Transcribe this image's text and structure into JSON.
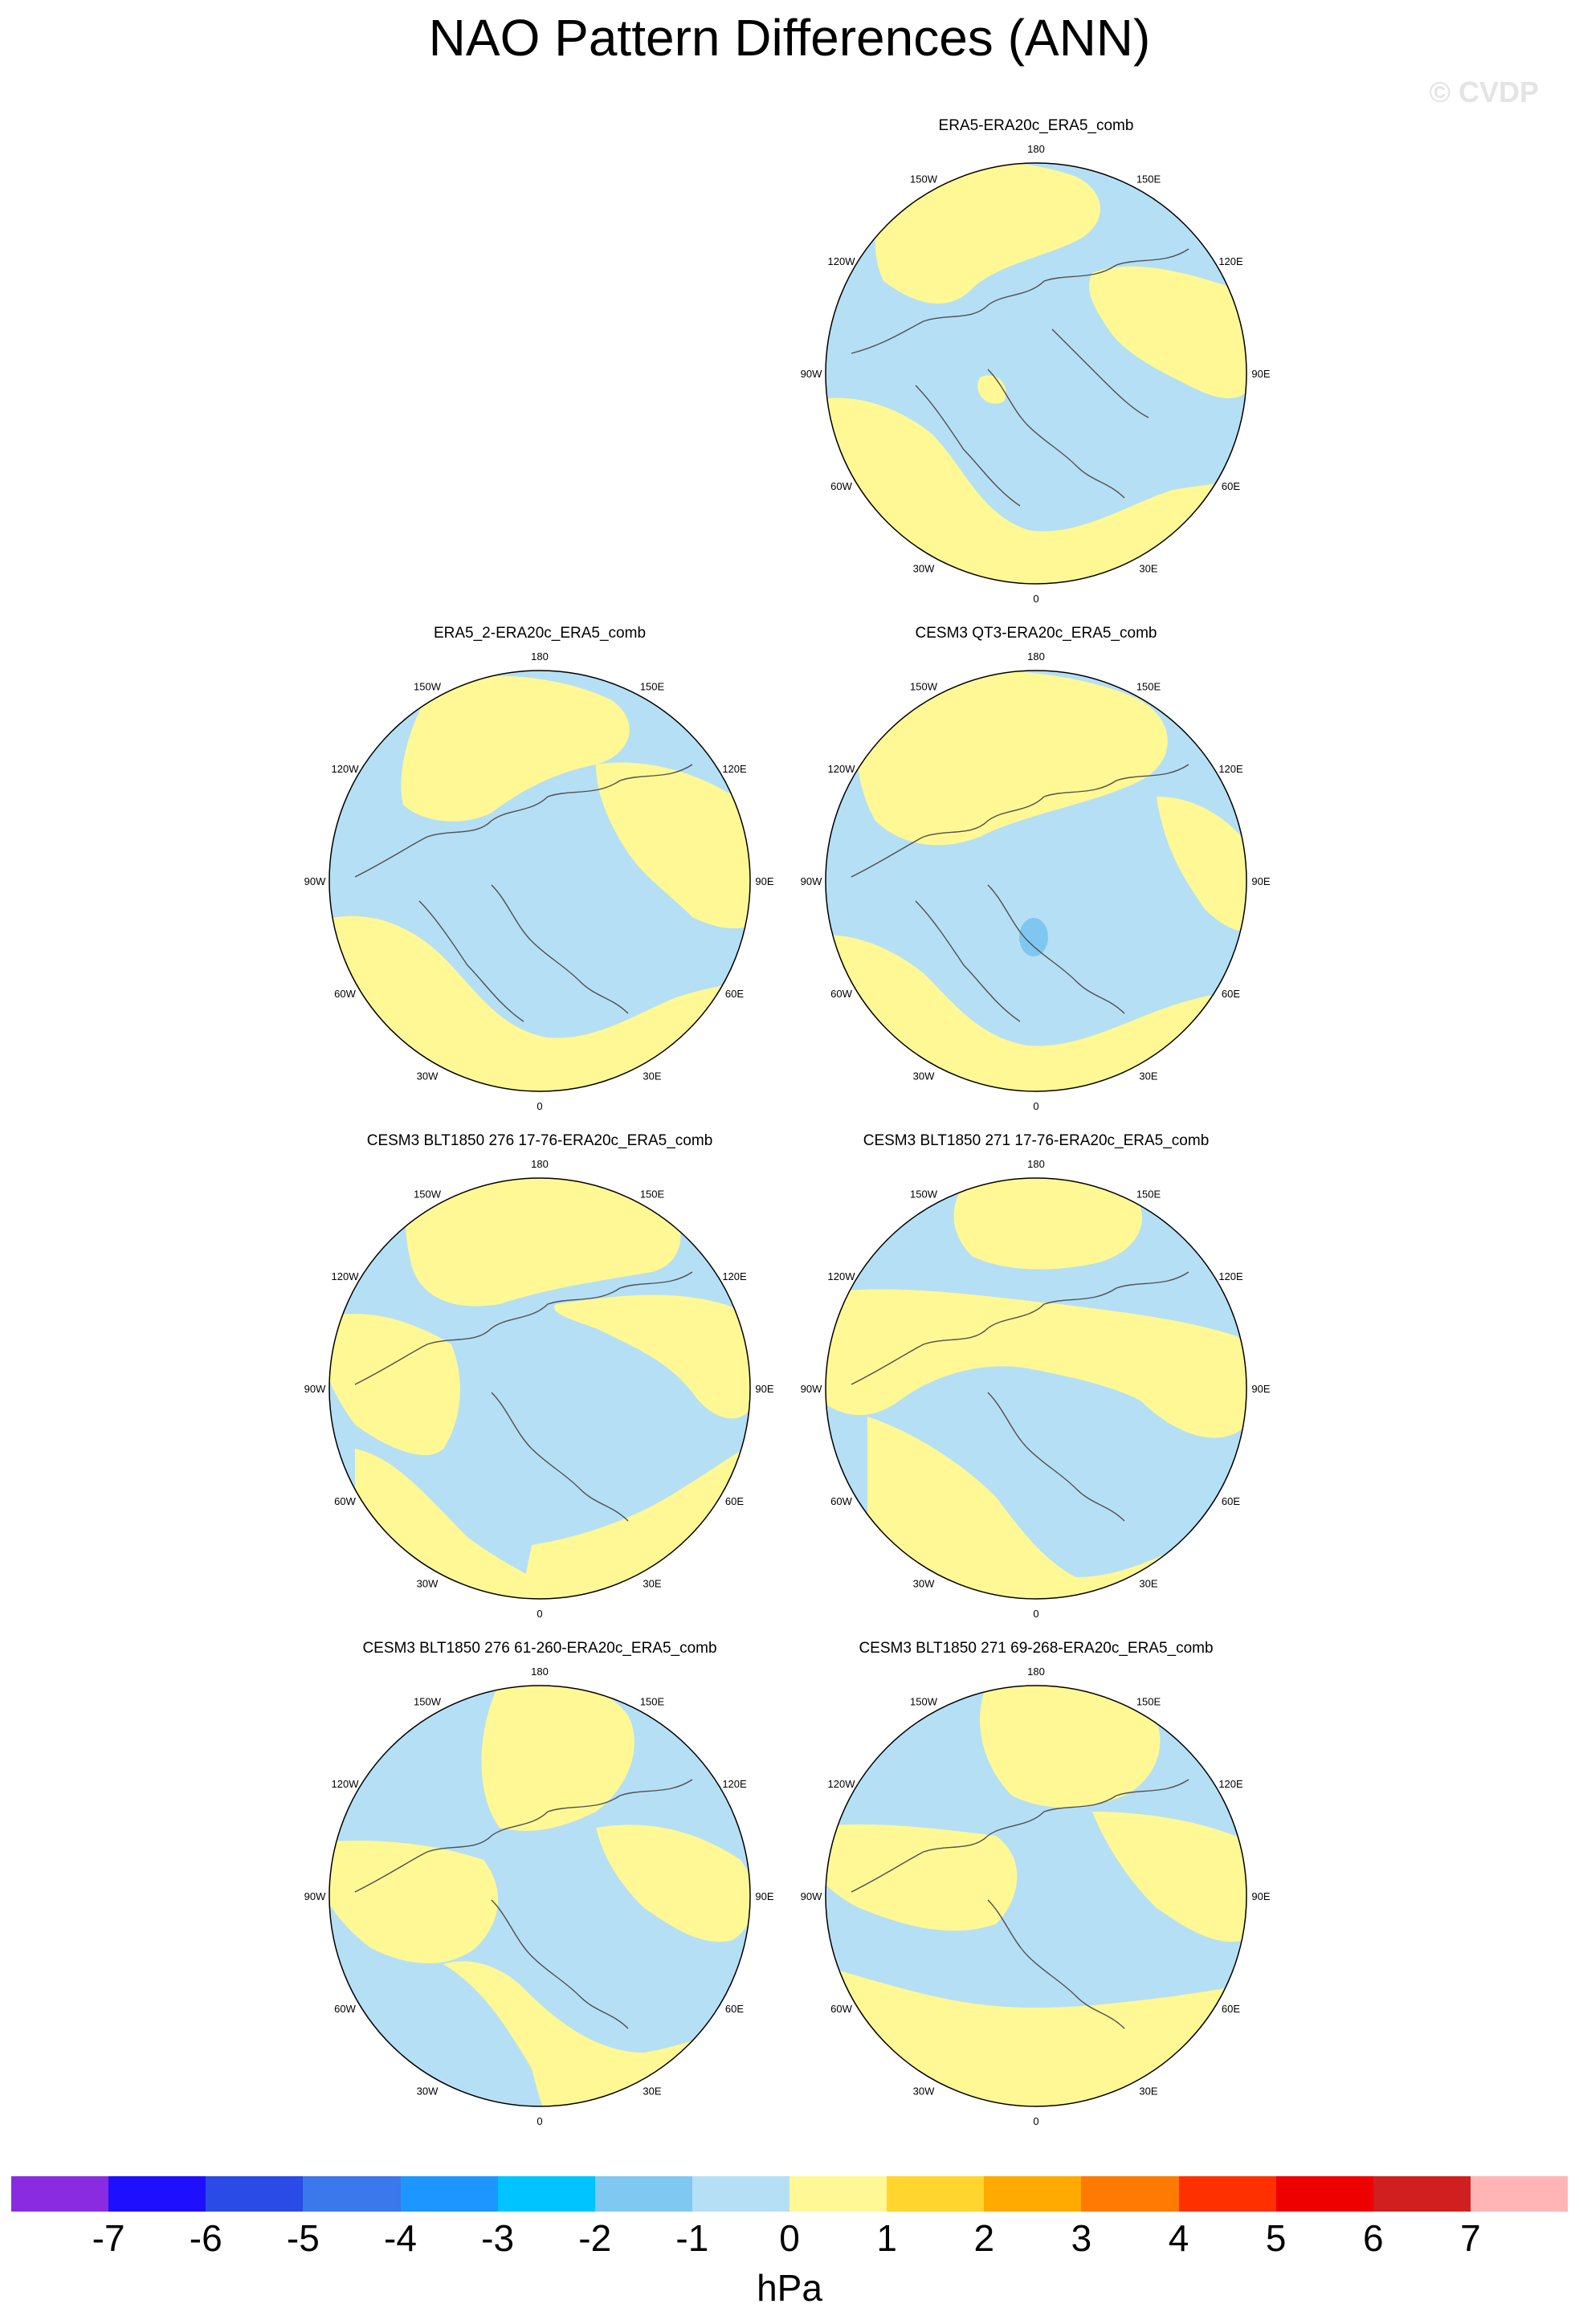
{
  "title": "NAO Pattern Differences (ANN)",
  "watermark": "© CVDP",
  "colors": {
    "positive_light": "#fff894",
    "negative_light": "#b5dff5",
    "negative_mid": "#7fc7f0",
    "coast": "#505050"
  },
  "longitude_labels": [
    "180",
    "150E",
    "120E",
    "90E",
    "60E",
    "30E",
    "0",
    "30W",
    "60W",
    "90W",
    "120W",
    "150W"
  ],
  "panels": [
    {
      "title": "ERA5-ERA20c_ERA5_comb"
    },
    {
      "title": "ERA5_2-ERA20c_ERA5_comb"
    },
    {
      "title": "CESM3 QT3-ERA20c_ERA5_comb"
    },
    {
      "title": "CESM3 BLT1850 276 17-76-ERA20c_ERA5_comb"
    },
    {
      "title": "CESM3 BLT1850 271 17-76-ERA20c_ERA5_comb"
    },
    {
      "title": "CESM3 BLT1850 276 61-260-ERA20c_ERA5_comb"
    },
    {
      "title": "CESM3 BLT1850 271 69-268-ERA20c_ERA5_comb"
    }
  ],
  "colorbar": {
    "colors": [
      "#8a2be2",
      "#1e10ff",
      "#2a4be6",
      "#3a78ec",
      "#1e96ff",
      "#00c4ff",
      "#7fc8f2",
      "#b5dff5",
      "#fff894",
      "#ffd52e",
      "#ffaa00",
      "#ff7a00",
      "#ff3000",
      "#ee0000",
      "#d01f1f",
      "#ffb5b5"
    ],
    "labels": [
      "-7",
      "-6",
      "-5",
      "-4",
      "-3",
      "-2",
      "-1",
      "0",
      "1",
      "2",
      "3",
      "4",
      "5",
      "6",
      "7"
    ],
    "unit": "hPa"
  }
}
